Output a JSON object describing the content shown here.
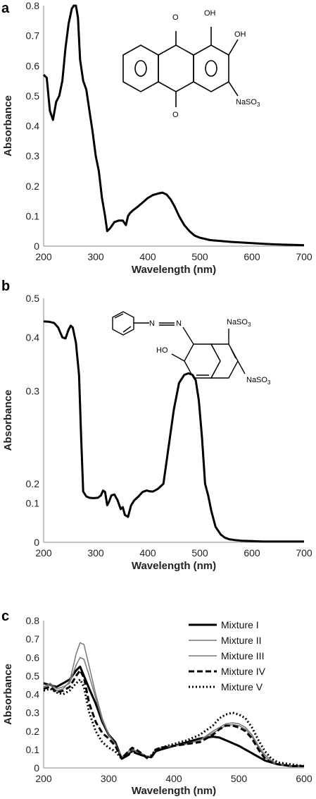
{
  "chart_data": [
    {
      "panel": "a",
      "type": "line",
      "title": "",
      "xlabel": "Wavelength (nm)",
      "ylabel": "Absorbance",
      "xlim": [
        200,
        700
      ],
      "ylim": [
        0,
        0.8
      ],
      "xticks": [
        "200",
        "300",
        "400",
        "500",
        "600",
        "700"
      ],
      "yticks": [
        "0",
        "0.1",
        "0.2",
        "0.3",
        "0.4",
        "0.5",
        "0.6",
        "0.7",
        "0.8"
      ],
      "grid": false,
      "series": [
        {
          "x": [
            200,
            206,
            212,
            218,
            224,
            230,
            236,
            242,
            248,
            254,
            258,
            262,
            266,
            270,
            276,
            282,
            288,
            294,
            300,
            306,
            312,
            318,
            322,
            328,
            336,
            344,
            352,
            358,
            362,
            366,
            372,
            380,
            390,
            400,
            410,
            420,
            428,
            436,
            444,
            452,
            460,
            470,
            480,
            490,
            500,
            520,
            540,
            560,
            580,
            600,
            620,
            640,
            660,
            680,
            700
          ],
          "y": [
            0.57,
            0.56,
            0.45,
            0.42,
            0.48,
            0.5,
            0.55,
            0.66,
            0.74,
            0.79,
            0.8,
            0.8,
            0.76,
            0.62,
            0.55,
            0.52,
            0.45,
            0.38,
            0.3,
            0.25,
            0.16,
            0.1,
            0.05,
            0.06,
            0.08,
            0.085,
            0.085,
            0.07,
            0.1,
            0.11,
            0.12,
            0.13,
            0.145,
            0.16,
            0.17,
            0.175,
            0.178,
            0.172,
            0.155,
            0.13,
            0.1,
            0.07,
            0.05,
            0.035,
            0.028,
            0.02,
            0.017,
            0.014,
            0.012,
            0.01,
            0.008,
            0.006,
            0.005,
            0.004,
            0.003
          ]
        }
      ]
    },
    {
      "panel": "b",
      "type": "line",
      "title": "",
      "xlabel": "Wavelength (nm)",
      "ylabel": "Absorbance",
      "xlim": [
        200,
        700
      ],
      "ylim": [
        0,
        0.5
      ],
      "xticks": [
        "200",
        "300",
        "400",
        "500",
        "600",
        "700"
      ],
      "yticks": [
        "0",
        "0.1",
        "0.2",
        "0.3",
        "0.4",
        "0.5"
      ],
      "yticks_values": [
        0,
        0.1,
        0.2,
        0.3,
        0.4,
        0.5
      ],
      "yticks_heights": [
        0,
        0.08,
        0.12,
        0.31,
        0.42,
        0.5
      ],
      "grid": false,
      "series": [
        {
          "x": [
            200,
            210,
            220,
            228,
            236,
            242,
            248,
            252,
            256,
            262,
            268,
            272,
            276,
            282,
            288,
            296,
            304,
            310,
            314,
            318,
            322,
            326,
            330,
            336,
            342,
            348,
            352,
            356,
            362,
            368,
            374,
            382,
            390,
            398,
            404,
            410,
            420,
            430,
            440,
            450,
            460,
            470,
            478,
            486,
            492,
            498,
            504,
            510,
            516,
            522,
            530,
            540,
            548,
            556,
            566,
            580,
            600,
            620,
            640,
            660,
            680,
            700
          ],
          "y": [
            0.441,
            0.44,
            0.437,
            0.425,
            0.4,
            0.398,
            0.42,
            0.43,
            0.425,
            0.39,
            0.33,
            0.25,
            0.16,
            0.135,
            0.128,
            0.126,
            0.128,
            0.14,
            0.165,
            0.158,
            0.095,
            0.11,
            0.14,
            0.145,
            0.115,
            0.085,
            0.09,
            0.07,
            0.065,
            0.095,
            0.115,
            0.135,
            0.158,
            0.165,
            0.161,
            0.16,
            0.175,
            0.2,
            0.24,
            0.28,
            0.315,
            0.33,
            0.333,
            0.33,
            0.32,
            0.29,
            0.25,
            0.2,
            0.14,
            0.08,
            0.04,
            0.02,
            0.012,
            0.008,
            0.006,
            0.004,
            0.003,
            0.002,
            0.002,
            0.002,
            0.002,
            0.002
          ]
        }
      ]
    },
    {
      "panel": "c",
      "type": "line",
      "title": "",
      "xlabel": "Wavelength (nm)",
      "ylabel": "Absorbance",
      "xlim": [
        200,
        600
      ],
      "ylim": [
        0,
        0.8
      ],
      "xticks": [
        "200",
        "300",
        "400",
        "500",
        "600"
      ],
      "yticks": [
        "0",
        "0.1",
        "0.2",
        "0.3",
        "0.4",
        "0.5",
        "0.6",
        "0.7",
        "0.8"
      ],
      "grid": false,
      "legend": "top-right",
      "categories_x": [
        200,
        210,
        220,
        230,
        240,
        250,
        256,
        262,
        270,
        280,
        290,
        300,
        310,
        320,
        330,
        336,
        342,
        350,
        360,
        366,
        372,
        380,
        400,
        420,
        440,
        460,
        470,
        480,
        490,
        500,
        510,
        520,
        530,
        540,
        550,
        560,
        580,
        600
      ],
      "series": [
        {
          "name": "Mixture I",
          "style": "solid-thick",
          "x": [
            200,
            210,
            220,
            230,
            240,
            250,
            256,
            262,
            270,
            280,
            290,
            300,
            310,
            320,
            330,
            336,
            342,
            350,
            360,
            366,
            372,
            380,
            400,
            420,
            440,
            460,
            470,
            480,
            490,
            500,
            510,
            520,
            530,
            540,
            550,
            560,
            580,
            600
          ],
          "y": [
            0.46,
            0.45,
            0.44,
            0.46,
            0.48,
            0.53,
            0.55,
            0.5,
            0.43,
            0.35,
            0.25,
            0.18,
            0.14,
            0.05,
            0.07,
            0.1,
            0.08,
            0.07,
            0.06,
            0.06,
            0.09,
            0.1,
            0.12,
            0.14,
            0.16,
            0.17,
            0.165,
            0.15,
            0.135,
            0.12,
            0.1,
            0.08,
            0.06,
            0.04,
            0.03,
            0.02,
            0.01,
            0.01
          ]
        },
        {
          "name": "Mixture  II",
          "style": "solid-thin",
          "x": [
            200,
            210,
            220,
            230,
            240,
            250,
            256,
            262,
            270,
            280,
            290,
            300,
            310,
            320,
            330,
            336,
            342,
            350,
            360,
            366,
            372,
            380,
            400,
            420,
            440,
            460,
            470,
            480,
            490,
            500,
            510,
            520,
            530,
            540,
            550,
            560,
            580,
            600
          ],
          "y": [
            0.44,
            0.45,
            0.42,
            0.43,
            0.47,
            0.62,
            0.68,
            0.67,
            0.55,
            0.4,
            0.27,
            0.18,
            0.13,
            0.06,
            0.09,
            0.11,
            0.09,
            0.08,
            0.06,
            0.07,
            0.1,
            0.11,
            0.12,
            0.13,
            0.15,
            0.2,
            0.22,
            0.24,
            0.245,
            0.24,
            0.22,
            0.18,
            0.12,
            0.07,
            0.04,
            0.02,
            0.01,
            0.01
          ]
        },
        {
          "name": "Mixture III",
          "style": "solid-thin",
          "x": [
            200,
            210,
            220,
            230,
            240,
            250,
            256,
            262,
            270,
            280,
            290,
            300,
            310,
            320,
            330,
            336,
            342,
            350,
            360,
            366,
            372,
            380,
            400,
            420,
            440,
            460,
            470,
            480,
            490,
            500,
            510,
            520,
            530,
            540,
            550,
            560,
            580,
            600
          ],
          "y": [
            0.44,
            0.46,
            0.43,
            0.44,
            0.46,
            0.56,
            0.6,
            0.59,
            0.5,
            0.38,
            0.26,
            0.18,
            0.13,
            0.06,
            0.08,
            0.1,
            0.09,
            0.08,
            0.06,
            0.07,
            0.1,
            0.11,
            0.12,
            0.13,
            0.15,
            0.19,
            0.21,
            0.23,
            0.235,
            0.23,
            0.21,
            0.17,
            0.11,
            0.06,
            0.03,
            0.02,
            0.01,
            0.01
          ]
        },
        {
          "name": "Mixture IV",
          "style": "dashed",
          "x": [
            200,
            210,
            220,
            230,
            240,
            250,
            256,
            262,
            270,
            280,
            290,
            300,
            310,
            320,
            330,
            336,
            342,
            350,
            360,
            366,
            372,
            380,
            400,
            420,
            440,
            460,
            470,
            480,
            490,
            500,
            510,
            520,
            530,
            540,
            550,
            560,
            580,
            600
          ],
          "y": [
            0.43,
            0.44,
            0.41,
            0.42,
            0.44,
            0.5,
            0.53,
            0.49,
            0.35,
            0.25,
            0.19,
            0.16,
            0.12,
            0.05,
            0.09,
            0.11,
            0.1,
            0.08,
            0.05,
            0.06,
            0.1,
            0.11,
            0.12,
            0.13,
            0.14,
            0.18,
            0.21,
            0.23,
            0.23,
            0.22,
            0.2,
            0.16,
            0.1,
            0.05,
            0.03,
            0.02,
            0.01,
            0.01
          ]
        },
        {
          "name": "Mixture V",
          "style": "dotted",
          "x": [
            200,
            210,
            220,
            230,
            240,
            250,
            256,
            262,
            270,
            280,
            290,
            300,
            310,
            320,
            330,
            336,
            342,
            350,
            360,
            366,
            372,
            380,
            400,
            420,
            440,
            460,
            470,
            480,
            490,
            500,
            510,
            520,
            530,
            540,
            550,
            560,
            580,
            600
          ],
          "y": [
            0.42,
            0.43,
            0.41,
            0.4,
            0.42,
            0.46,
            0.48,
            0.44,
            0.3,
            0.2,
            0.14,
            0.11,
            0.09,
            0.05,
            0.07,
            0.09,
            0.08,
            0.07,
            0.06,
            0.07,
            0.1,
            0.11,
            0.13,
            0.15,
            0.18,
            0.23,
            0.27,
            0.29,
            0.3,
            0.29,
            0.27,
            0.22,
            0.15,
            0.09,
            0.05,
            0.03,
            0.02,
            0.01
          ]
        }
      ]
    }
  ],
  "panels": [
    {
      "letter": "a",
      "structure_labels": {
        "oh1": "OH",
        "oh2": "OH",
        "o1": "O",
        "o2": "O",
        "na": "NaSO",
        "sub": "3"
      }
    },
    {
      "letter": "b",
      "structure_labels": {
        "n1": "N",
        "n2": "N",
        "ho": "HO",
        "na1": "NaSO",
        "na1sub": "3",
        "na2": "NaSO",
        "na2sub": "3"
      }
    },
    {
      "letter": "c"
    }
  ]
}
